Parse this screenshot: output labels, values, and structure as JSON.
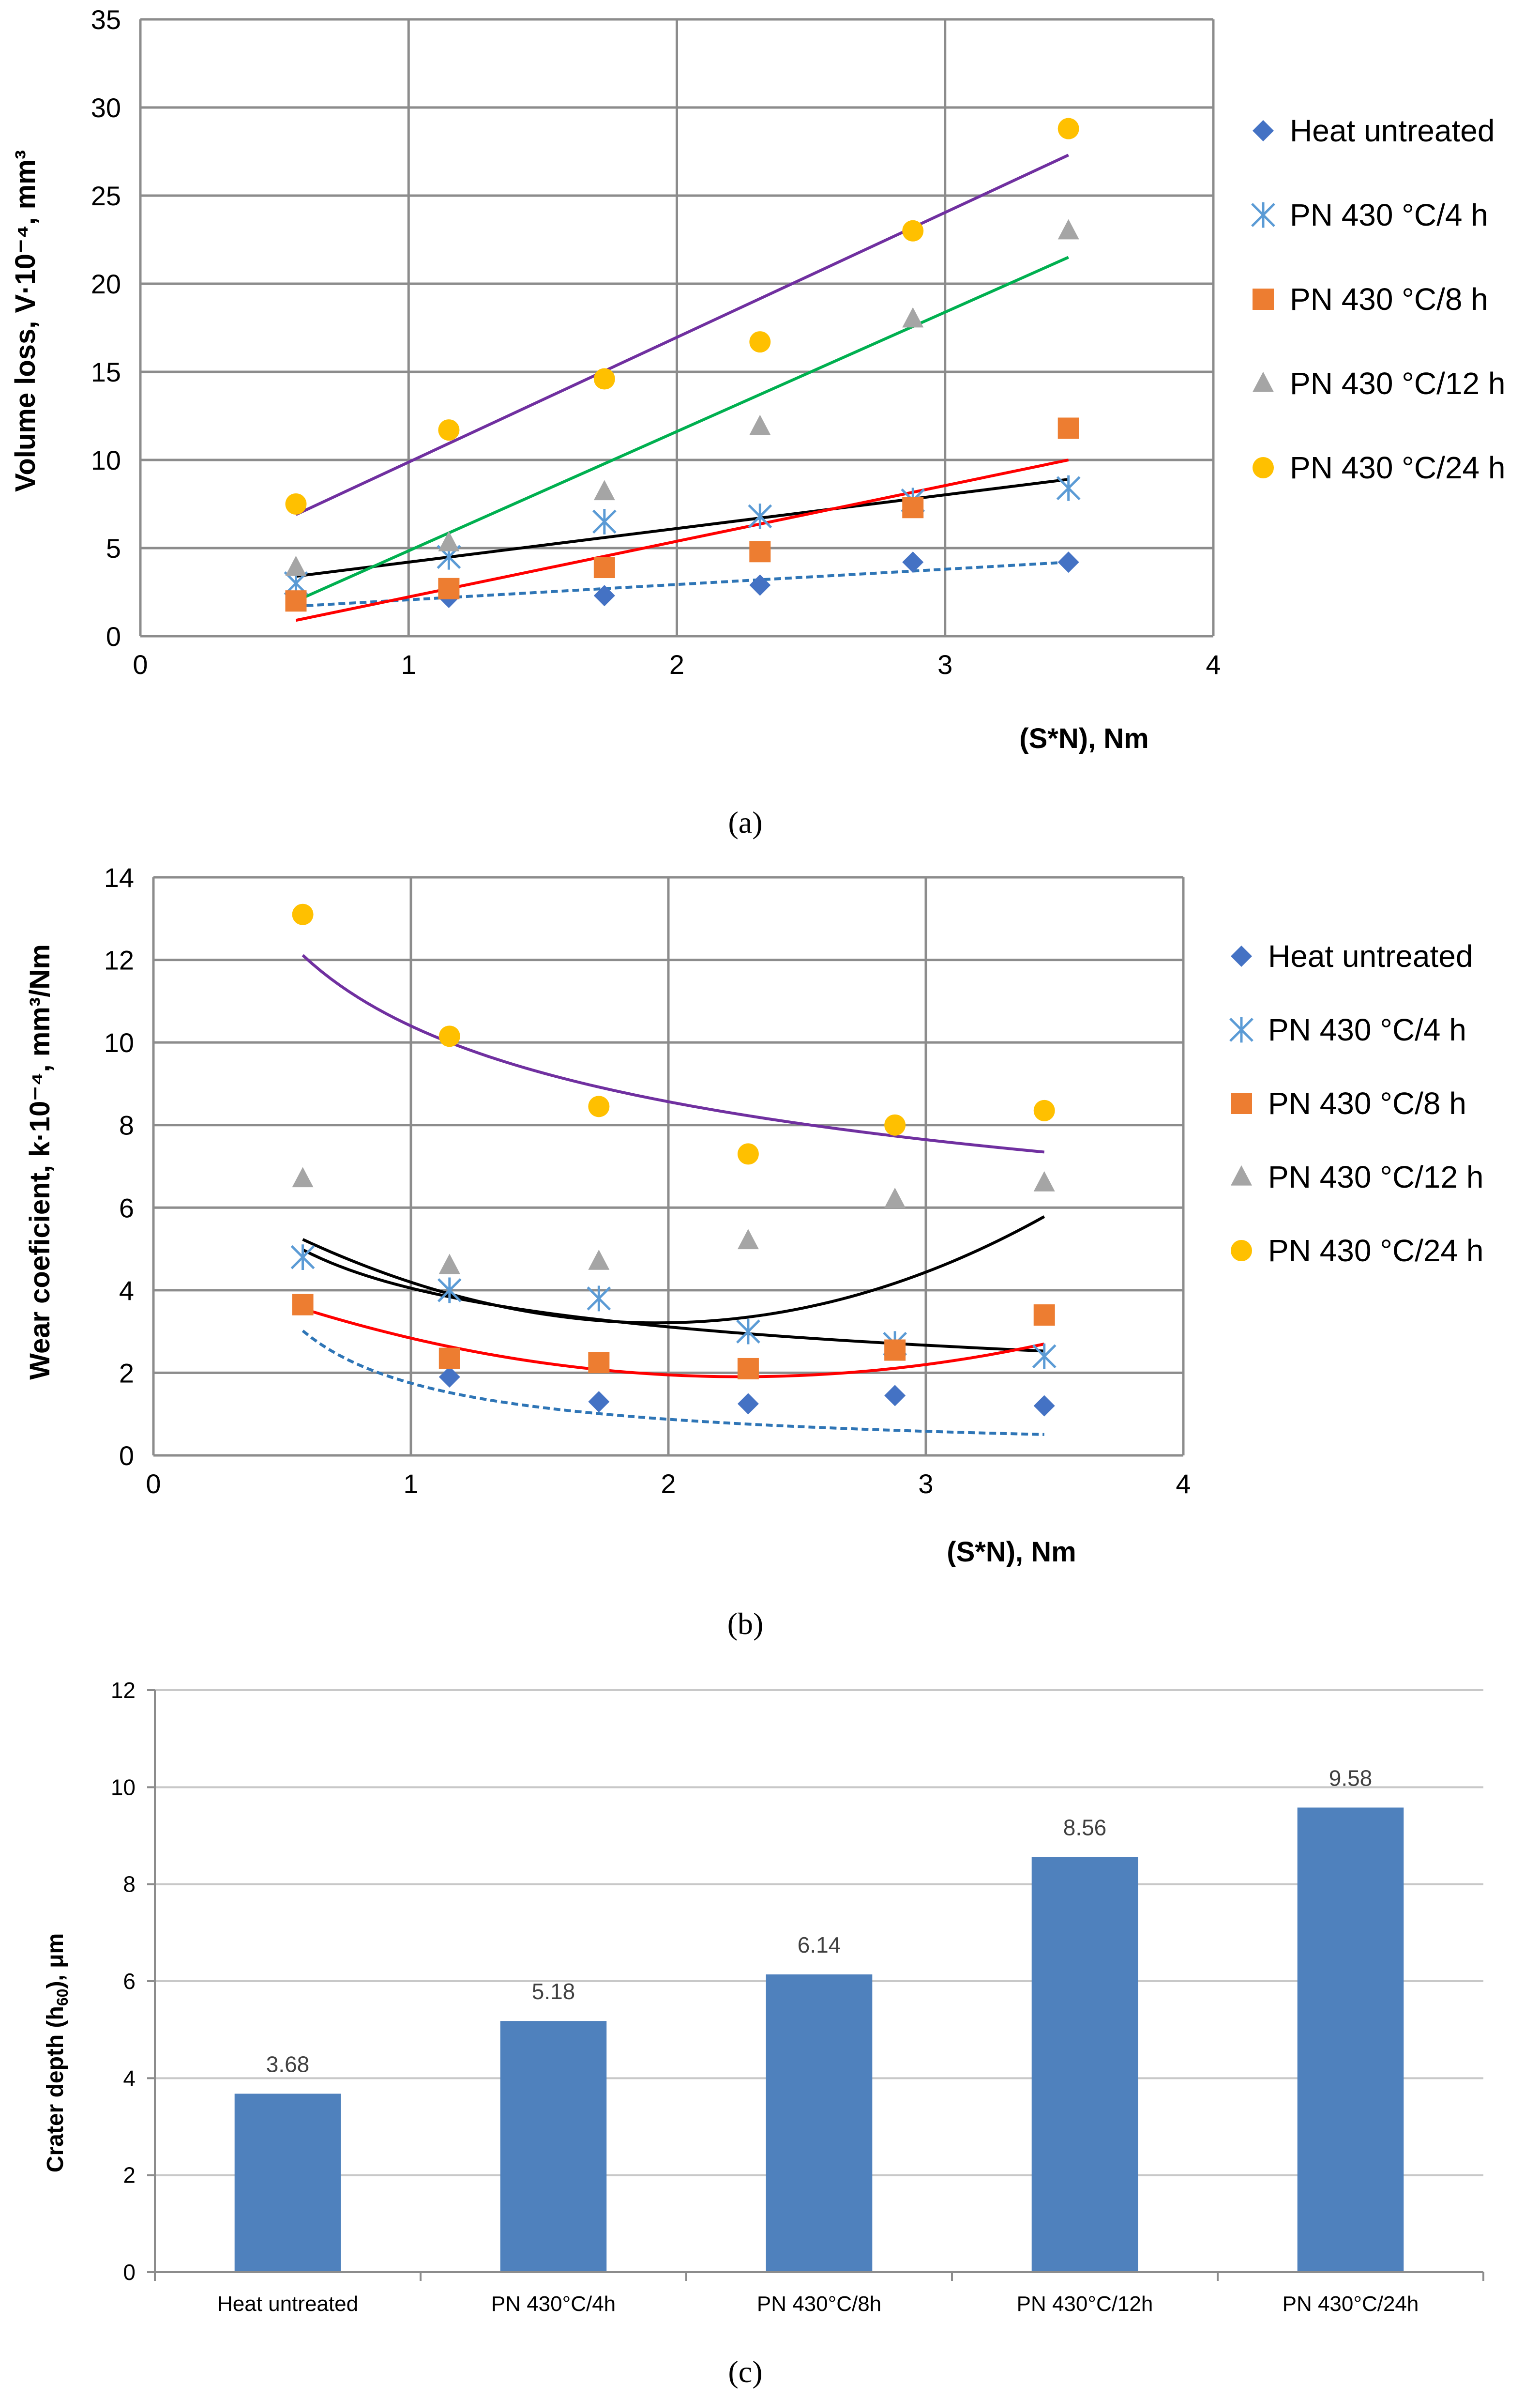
{
  "chart_data": [
    {
      "id": "a",
      "type": "scatter",
      "panel_label": "(a)",
      "title": "",
      "xlabel": "(S*N), Nm",
      "ylabel": "Volume loss, V·10⁻⁴, mm³",
      "xlim": [
        0,
        4
      ],
      "ylim": [
        0,
        35
      ],
      "xticks": [
        0,
        1,
        2,
        3,
        4
      ],
      "yticks": [
        0,
        5,
        10,
        15,
        20,
        25,
        30,
        35
      ],
      "grid": true,
      "legend_position": "right",
      "series": [
        {
          "name": "Heat untreated",
          "marker": "diamond",
          "color": "#4472C4",
          "x": [
            0.58,
            1.15,
            1.73,
            2.31,
            2.88,
            3.46
          ],
          "y": [
            2.0,
            2.2,
            2.3,
            2.9,
            4.2,
            4.2
          ],
          "trend": {
            "kind": "linear",
            "color": "#2E75B6",
            "dash": true,
            "x": [
              0.58,
              3.46
            ],
            "y": [
              1.7,
              4.2
            ]
          }
        },
        {
          "name": "PN 430 °C/4 h",
          "marker": "asterisk",
          "color": "#5B9BD5",
          "x": [
            0.58,
            1.15,
            1.73,
            2.31,
            2.88,
            3.46
          ],
          "y": [
            3.0,
            4.5,
            6.5,
            6.8,
            7.7,
            8.4
          ],
          "trend": {
            "kind": "linear",
            "color": "#000000",
            "dash": false,
            "x": [
              0.58,
              3.46
            ],
            "y": [
              3.4,
              8.9
            ]
          }
        },
        {
          "name": "PN 430 °C/8 h",
          "marker": "square",
          "color": "#ED7D31",
          "x": [
            0.58,
            1.15,
            1.73,
            2.31,
            2.88,
            3.46
          ],
          "y": [
            2.0,
            2.7,
            3.9,
            4.8,
            7.3,
            11.8
          ],
          "trend": {
            "kind": "linear",
            "color": "#FF0000",
            "dash": false,
            "x": [
              0.58,
              3.46
            ],
            "y": [
              0.9,
              10.0
            ]
          }
        },
        {
          "name": "PN 430 °C/12 h",
          "marker": "triangle",
          "color": "#A5A5A5",
          "x": [
            0.58,
            1.15,
            1.73,
            2.31,
            2.88,
            3.46
          ],
          "y": [
            3.9,
            5.3,
            8.2,
            11.9,
            18.0,
            23.0
          ],
          "trend": {
            "kind": "linear",
            "color": "#00B050",
            "dash": false,
            "x": [
              0.58,
              3.46
            ],
            "y": [
              2.0,
              21.5
            ]
          }
        },
        {
          "name": "PN 430 °C/24 h",
          "marker": "circle",
          "color": "#FFC000",
          "x": [
            0.58,
            1.15,
            1.73,
            2.31,
            2.88,
            3.46
          ],
          "y": [
            7.5,
            11.7,
            14.6,
            16.7,
            23.0,
            28.8
          ],
          "trend": {
            "kind": "linear",
            "color": "#7030A0",
            "dash": false,
            "x": [
              0.58,
              3.46
            ],
            "y": [
              6.9,
              27.3
            ]
          }
        }
      ]
    },
    {
      "id": "b",
      "type": "scatter",
      "panel_label": "(b)",
      "title": "",
      "xlabel": "(S*N), Nm",
      "ylabel": "Wear coeficient, k·10⁻⁴, mm³/Nm",
      "xlim": [
        0,
        4
      ],
      "ylim": [
        0,
        14
      ],
      "xticks": [
        0,
        1,
        2,
        3,
        4
      ],
      "yticks": [
        0,
        2,
        4,
        6,
        8,
        10,
        12,
        14
      ],
      "grid": true,
      "legend_position": "right",
      "series": [
        {
          "name": "Heat untreated",
          "marker": "diamond",
          "color": "#4472C4",
          "x": [
            1.15,
            1.73,
            2.31,
            2.88,
            3.46
          ],
          "y": [
            1.9,
            1.3,
            1.25,
            1.45,
            1.2
          ],
          "trend": {
            "kind": "power",
            "color": "#2E75B6",
            "dash": true,
            "a": 1.75,
            "b": -1.0,
            "x_range": [
              0.58,
              3.46
            ]
          }
        },
        {
          "name": "PN 430 °C/4 h",
          "marker": "asterisk",
          "color": "#5B9BD5",
          "x": [
            0.58,
            1.15,
            1.73,
            2.31,
            2.88,
            3.46
          ],
          "y": [
            4.8,
            4.0,
            3.8,
            3.0,
            2.7,
            2.4
          ],
          "trend": {
            "kind": "power",
            "color": "#000000",
            "dash": false,
            "a": 4.05,
            "b": -0.38,
            "x_range": [
              0.58,
              3.46
            ]
          }
        },
        {
          "name": "PN 430 °C/8 h",
          "marker": "square",
          "color": "#ED7D31",
          "x": [
            0.58,
            1.15,
            1.73,
            2.31,
            2.88,
            3.46
          ],
          "y": [
            3.65,
            2.35,
            2.25,
            2.1,
            2.55,
            3.4
          ],
          "trend": {
            "kind": "poly",
            "color": "#FF0000",
            "dash": false,
            "coeffs": [
              4.87,
              -2.6,
              0.57
            ],
            "x_range": [
              0.58,
              3.46
            ]
          }
        },
        {
          "name": "PN 430 °C/12 h",
          "marker": "triangle",
          "color": "#A5A5A5",
          "x": [
            0.58,
            1.15,
            1.73,
            2.31,
            2.88,
            3.46
          ],
          "y": [
            6.7,
            4.6,
            4.7,
            5.2,
            6.2,
            6.6
          ],
          "trend": {
            "kind": "poly",
            "color": "#000000",
            "dash": false,
            "coeffs": [
              7.24,
              -4.03,
              0.96,
              0.024
            ],
            "x_range": [
              0.58,
              3.46
            ]
          }
        },
        {
          "name": "PN 430 °C/24 h",
          "marker": "circle",
          "color": "#FFC000",
          "x": [
            0.58,
            1.15,
            1.73,
            2.31,
            2.88,
            3.46
          ],
          "y": [
            13.1,
            10.15,
            8.45,
            7.3,
            8.0,
            8.35
          ],
          "trend": {
            "kind": "power",
            "color": "#7030A0",
            "dash": false,
            "a": 10.4,
            "b": -0.28,
            "x_range": [
              0.58,
              3.46
            ]
          }
        }
      ]
    },
    {
      "id": "c",
      "type": "bar",
      "panel_label": "(c)",
      "title": "",
      "xlabel": "",
      "ylabel": "Crater depth (h60), μm",
      "ylabel_main": "Crater depth (h",
      "ylabel_sub": "60",
      "ylabel_tail": "), μm",
      "ylim": [
        0,
        12
      ],
      "yticks": [
        0,
        2,
        4,
        6,
        8,
        10,
        12
      ],
      "grid": true,
      "bar_color": "#4F81BD",
      "categories": [
        "Heat untreated",
        "PN 430°C/4h",
        "PN 430°C/8h",
        "PN 430°C/12h",
        "PN 430°C/24h"
      ],
      "values": [
        3.68,
        5.18,
        6.14,
        8.56,
        9.58
      ],
      "value_labels": [
        "3.68",
        "5.18",
        "6.14",
        "8.56",
        "9.58"
      ]
    }
  ]
}
